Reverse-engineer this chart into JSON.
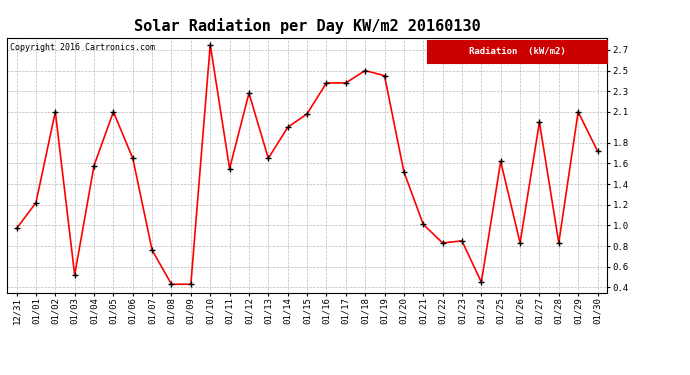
{
  "title": "Solar Radiation per Day KW/m2 20160130",
  "copyright": "Copyright 2016 Cartronics.com",
  "legend_label": "Radiation  (kW/m2)",
  "dates": [
    "12/31",
    "01/01",
    "01/02",
    "01/03",
    "01/04",
    "01/05",
    "01/06",
    "01/07",
    "01/08",
    "01/09",
    "01/10",
    "01/11",
    "01/12",
    "01/13",
    "01/14",
    "01/15",
    "01/16",
    "01/17",
    "01/18",
    "01/19",
    "01/20",
    "01/21",
    "01/22",
    "01/23",
    "01/24",
    "01/25",
    "01/26",
    "01/27",
    "01/28",
    "01/29",
    "01/30"
  ],
  "values": [
    0.97,
    1.22,
    2.1,
    0.52,
    1.58,
    2.1,
    1.65,
    0.76,
    0.43,
    0.43,
    2.75,
    1.55,
    2.28,
    1.65,
    1.95,
    2.08,
    2.38,
    2.38,
    2.5,
    2.45,
    1.52,
    1.01,
    0.83,
    0.85,
    0.45,
    1.62,
    0.83,
    2.0,
    0.83,
    2.1,
    1.72
  ],
  "ylim": [
    0.35,
    2.82
  ],
  "ytick_vals": [
    0.4,
    0.6,
    0.8,
    1.0,
    1.2,
    1.4,
    1.6,
    1.8,
    2.1,
    2.3,
    2.5,
    2.7
  ],
  "line_color": "#ff0000",
  "marker_color": "#000000",
  "background_color": "#ffffff",
  "grid_color": "#bbbbbb",
  "title_fontsize": 11,
  "tick_fontsize": 6.5,
  "copyright_fontsize": 6,
  "legend_bg": "#cc0000",
  "legend_fg": "#ffffff"
}
